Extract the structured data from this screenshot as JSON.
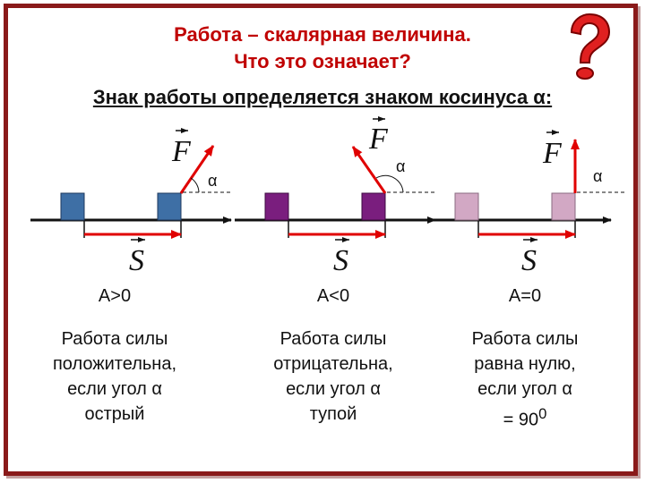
{
  "header": {
    "title_line1": "Работа – скалярная величина.",
    "title_line2": "Что это означает?",
    "subtitle": "Знак работы определяется знаком косинуса α:"
  },
  "labels": {
    "force": "F",
    "displacement": "S",
    "alpha": "α"
  },
  "cases": [
    {
      "result": "A>0",
      "desc": [
        "Работа силы",
        "положительна,",
        "если угол α",
        "острый"
      ],
      "block_color": "#3e6fa5"
    },
    {
      "result": "A<0",
      "desc": [
        "Работа силы",
        "отрицательна,",
        "если угол α",
        "тупой"
      ],
      "block_color": "#7a1e7e"
    },
    {
      "result": "A=0",
      "desc": [
        "Работа силы",
        "равна нулю,",
        "если угол α",
        "= 90"
      ],
      "desc_superscript": "0",
      "block_color": "#d2a8c4"
    }
  ],
  "colors": {
    "title": "#c00000",
    "arrow": "#e00000",
    "frame": "#8a1a1a"
  },
  "icons": {
    "corner": "question-mark-icon"
  }
}
